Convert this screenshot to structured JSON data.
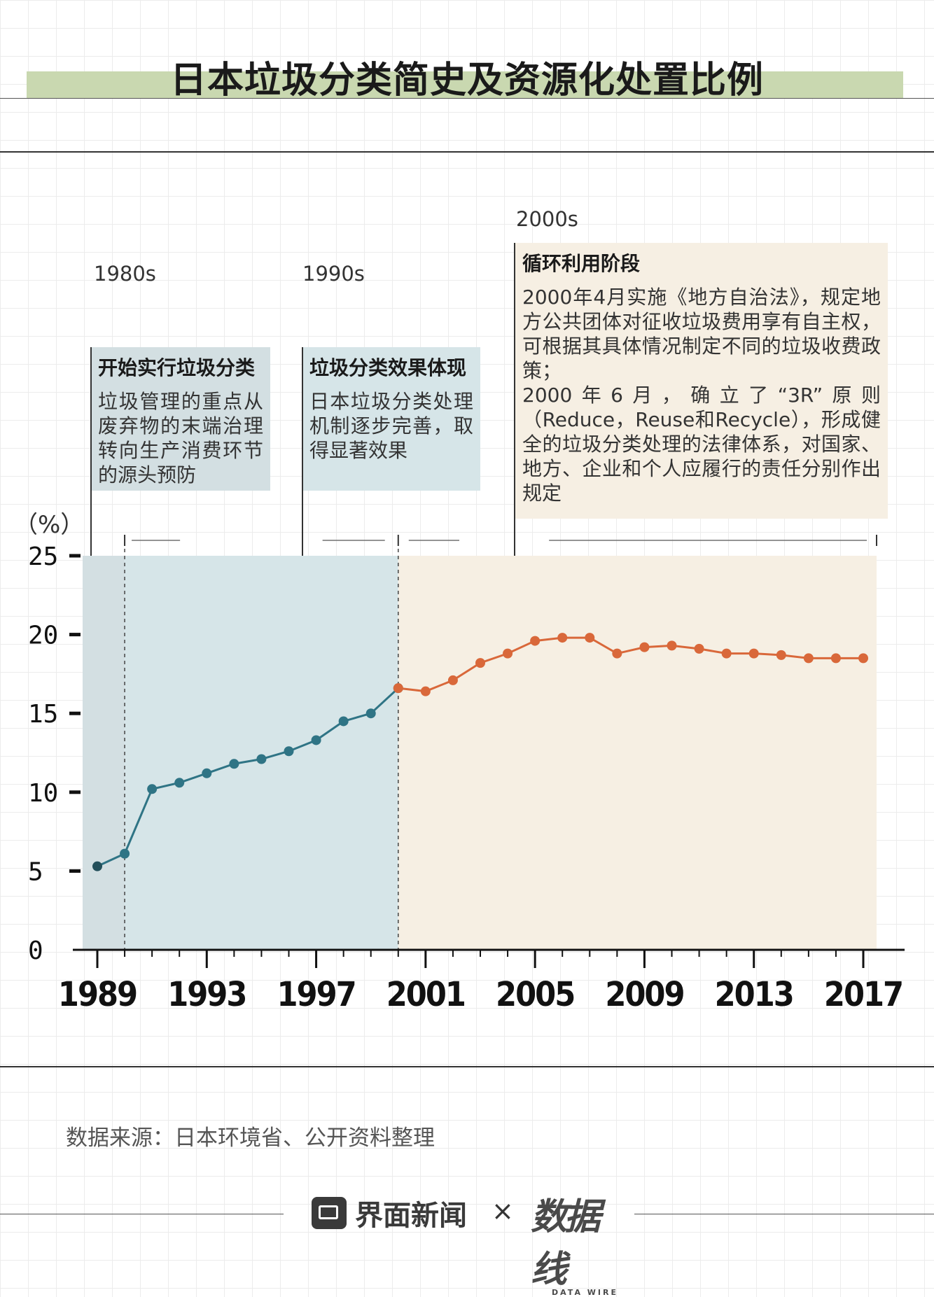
{
  "title": "日本垃圾分类简史及资源化处置比例",
  "eras": [
    {
      "label": "1980s",
      "heading": "开始实行垃圾分类",
      "body": "垃圾管理的重点从废弃物的末端治理转向生产消费环节的源头预防"
    },
    {
      "label": "1990s",
      "heading": "垃圾分类效果体现",
      "body": "日本垃圾分类处理机制逐步完善，取得显著效果"
    },
    {
      "label": "2000s",
      "heading": "循环利用阶段",
      "body": "2000年4月实施《地方自治法》，规定地方公共团体对征收垃圾费用享有自主权，可根据其具体情况制定不同的垃圾收费政策；\n2000年6月，确立了“3R”原则（Reduce，Reuse和Recycle），形成健全的垃圾分类处理的法律体系，对国家、地方、企业和个人应履行的责任分别作出规定"
    }
  ],
  "chart_data": {
    "type": "line",
    "ylabel": "（%）",
    "ylim": [
      0,
      25
    ],
    "yticks": [
      0,
      5,
      10,
      15,
      20,
      25
    ],
    "xlim": [
      1989,
      2017
    ],
    "xticks": [
      1989,
      1993,
      1997,
      2001,
      2005,
      2009,
      2013,
      2017
    ],
    "grid": true,
    "legend": "none",
    "series": [
      {
        "color": "#2f7485",
        "x": [
          1989,
          1990,
          1991,
          1992,
          1993,
          1994,
          1995,
          1996,
          1997,
          1998,
          1999,
          2000
        ],
        "values": [
          5.3,
          6.1,
          10.2,
          10.6,
          11.2,
          11.8,
          12.1,
          12.6,
          13.3,
          14.5,
          15.0,
          16.6
        ]
      },
      {
        "color": "#d9683a",
        "x": [
          2000,
          2001,
          2002,
          2003,
          2004,
          2005,
          2006,
          2007,
          2008,
          2009,
          2010,
          2011,
          2012,
          2013,
          2014,
          2015,
          2016,
          2017
        ],
        "values": [
          16.6,
          16.4,
          17.1,
          18.2,
          18.8,
          19.6,
          19.8,
          19.8,
          18.8,
          19.2,
          19.3,
          19.1,
          18.8,
          18.8,
          18.7,
          18.5,
          18.5,
          18.5
        ]
      }
    ],
    "shaded_periods": [
      {
        "from": 1989,
        "to": 1990,
        "color": "#d3dfe2"
      },
      {
        "from": 1990,
        "to": 2000,
        "color": "#d6e5e8"
      },
      {
        "from": 2000,
        "to": 2017,
        "color": "#f6efe3"
      }
    ]
  },
  "source": "数据来源：日本环境省、公开资料整理",
  "footer": {
    "brand": "界面新闻",
    "times": "×",
    "partner_logo_text": "数据线",
    "partner_logo_sub": "DATA WIRE"
  },
  "colors": {
    "title_band": "#c9d8b0",
    "box_1980s": "#d3dfe2",
    "box_1990s": "#d6e5e8",
    "box_2000s": "#f6efe3",
    "line_1990s": "#2f7485",
    "line_2000s": "#d9683a"
  }
}
